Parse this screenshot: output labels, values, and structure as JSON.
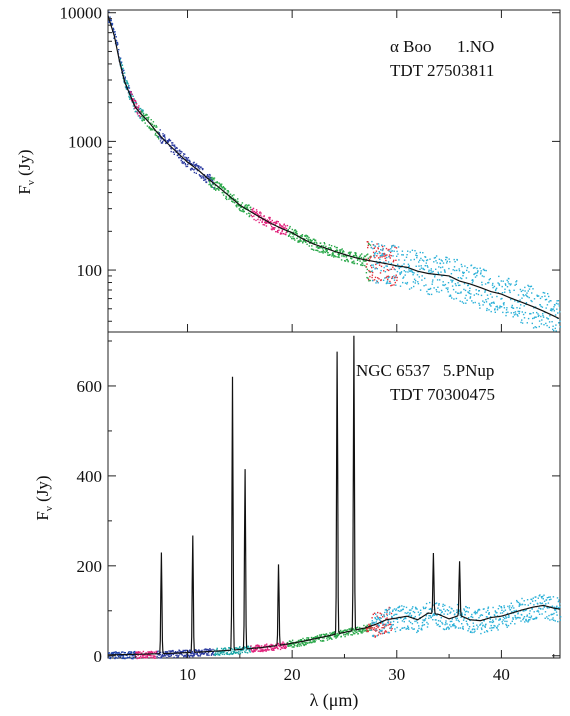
{
  "chart_data": [
    {
      "type": "line",
      "yscale": "log",
      "xlim": [
        2.4,
        45.6
      ],
      "ylim": [
        33,
        10500
      ],
      "yticks": [
        100,
        1000,
        10000
      ],
      "yticklabels": [
        "100",
        "1000",
        "10000"
      ],
      "ylabel_main": "F",
      "ylabel_sub": "ν",
      "ylabel_unit": " (Jy)",
      "annotation": [
        "α Boo      1.NO",
        "TDT 27503811"
      ],
      "model_color": "#111111",
      "model": {
        "x": [
          2.4,
          3,
          3.5,
          4,
          4.5,
          5,
          5.5,
          6,
          6.5,
          7,
          7.5,
          8,
          9,
          10,
          11,
          12,
          13,
          14,
          15,
          16,
          17,
          18,
          19,
          20,
          21,
          22,
          23,
          24,
          25,
          26,
          27,
          28,
          29,
          30,
          31,
          32,
          33,
          34,
          35,
          36,
          37,
          38,
          39,
          40,
          41,
          42,
          43,
          44,
          45,
          45.5
        ],
        "y": [
          9500,
          6600,
          4200,
          2900,
          2300,
          1850,
          1650,
          1500,
          1350,
          1200,
          1080,
          980,
          820,
          690,
          600,
          510,
          440,
          375,
          320,
          285,
          255,
          230,
          210,
          195,
          175,
          160,
          150,
          140,
          132,
          125,
          120,
          116,
          112,
          108,
          105,
          98,
          94,
          92,
          90,
          82,
          78,
          73,
          68,
          65,
          60,
          56,
          52,
          48,
          44,
          42
        ]
      },
      "segments": [
        {
          "x": [
            2.4,
            4.6
          ],
          "color": "#1a3fa8"
        },
        {
          "x": [
            3.5,
            5.8
          ],
          "color": "#1aa6a6"
        },
        {
          "x": [
            4.5,
            5.5
          ],
          "color": "#e0207a"
        },
        {
          "x": [
            5.5,
            7.2
          ],
          "color": "#2aa84a"
        },
        {
          "x": [
            7.2,
            12.5
          ],
          "color": "#2b3aa0"
        },
        {
          "x": [
            12,
            16
          ],
          "color": "#2aa84a"
        },
        {
          "x": [
            16,
            19.5
          ],
          "color": "#e0207a"
        },
        {
          "x": [
            19.5,
            27.5
          ],
          "color": "#2aa84a"
        },
        {
          "x": [
            27,
            30
          ],
          "color": "#e0303a"
        },
        {
          "x": [
            27.5,
            45.6
          ],
          "color": "#2ab0d8"
        }
      ]
    },
    {
      "type": "line",
      "xlim": [
        2.4,
        45.6
      ],
      "ylim": [
        -5,
        720
      ],
      "yticks": [
        0,
        200,
        400,
        600
      ],
      "yticklabels": [
        "0",
        "200",
        "400",
        "600"
      ],
      "xticks": [
        10,
        20,
        30,
        40
      ],
      "xticklabels": [
        "10",
        "20",
        "30",
        "40"
      ],
      "xlabel": "λ (μm)",
      "ylabel_main": "F",
      "ylabel_sub": "ν",
      "ylabel_unit": " (Jy)",
      "annotation": [
        "NGC 6537   5.PNup",
        "TDT 70300475"
      ],
      "model_color": "#111111",
      "continuum": {
        "x": [
          2.4,
          5,
          8,
          11,
          14,
          17,
          19,
          21,
          23,
          25,
          27,
          28,
          29,
          30,
          31,
          32,
          33,
          34,
          35,
          36,
          37,
          38,
          39,
          40,
          41,
          42,
          43,
          44,
          45,
          45.5
        ],
        "y": [
          2,
          3,
          5,
          8,
          12,
          18,
          24,
          32,
          42,
          52,
          62,
          70,
          80,
          84,
          88,
          80,
          95,
          92,
          82,
          90,
          80,
          78,
          85,
          88,
          95,
          102,
          108,
          112,
          106,
          104
        ]
      },
      "lines": [
        {
          "x": 7.5,
          "peak": 225
        },
        {
          "x": 10.5,
          "peak": 260
        },
        {
          "x": 14.3,
          "peak": 608
        },
        {
          "x": 15.5,
          "peak": 400
        },
        {
          "x": 18.7,
          "peak": 180
        },
        {
          "x": 24.3,
          "peak": 628
        },
        {
          "x": 25.9,
          "peak": 655
        },
        {
          "x": 33.5,
          "peak": 135
        },
        {
          "x": 36.0,
          "peak": 120
        }
      ],
      "segments": [
        {
          "x": [
            2.4,
            5
          ],
          "color": "#1a3fa8"
        },
        {
          "x": [
            5,
            7
          ],
          "color": "#e0207a"
        },
        {
          "x": [
            7,
            12.5
          ],
          "color": "#2b3aa0"
        },
        {
          "x": [
            12.5,
            16
          ],
          "color": "#1aa6a6"
        },
        {
          "x": [
            16,
            19.5
          ],
          "color": "#e0207a"
        },
        {
          "x": [
            19.5,
            27.5
          ],
          "color": "#2aa84a"
        },
        {
          "x": [
            27,
            29.5
          ],
          "color": "#e0303a"
        },
        {
          "x": [
            27.5,
            45.6
          ],
          "color": "#2ab0d8"
        }
      ]
    }
  ]
}
